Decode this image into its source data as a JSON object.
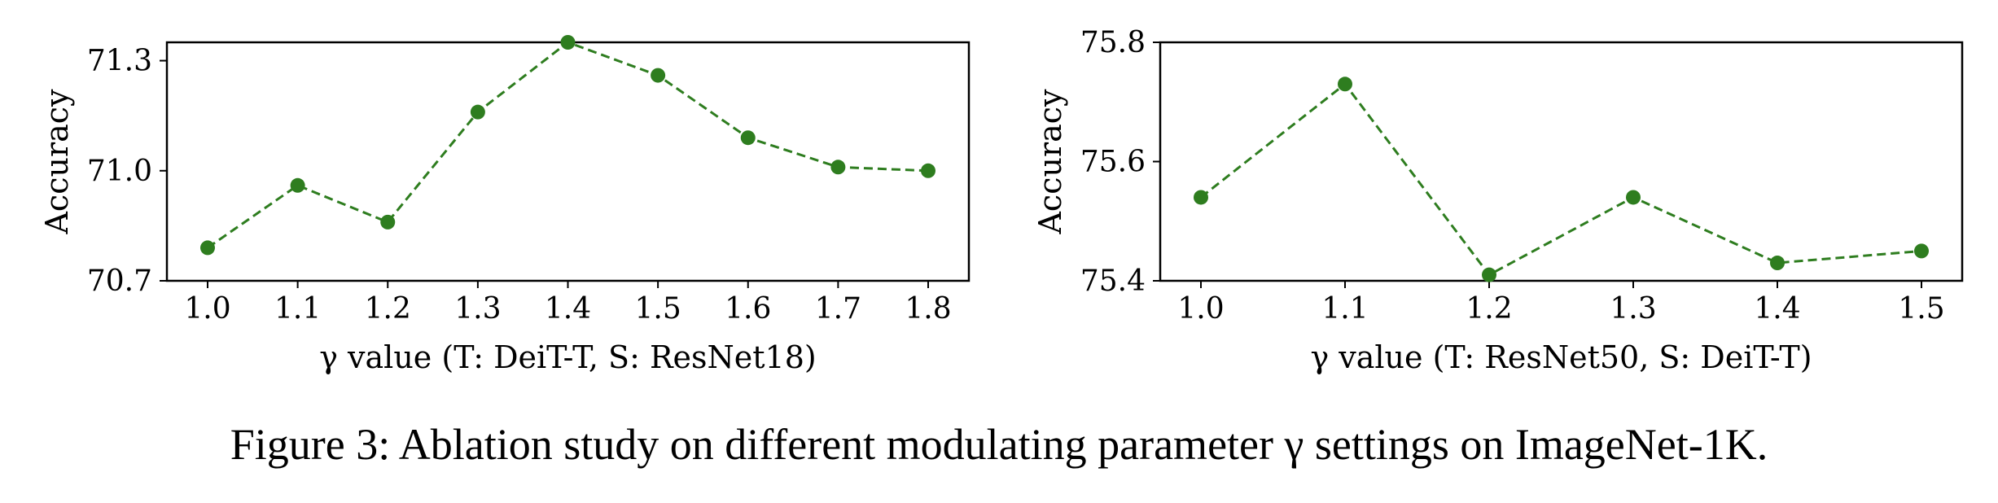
{
  "caption": "Figure 3: Ablation study on different modulating parameter γ settings on ImageNet-1K.",
  "chart_data": [
    {
      "type": "line",
      "xlabel": "γ value (T: DeiT-T, S: ResNet18)",
      "ylabel": "Accuracy",
      "x": [
        1.0,
        1.1,
        1.2,
        1.3,
        1.4,
        1.5,
        1.6,
        1.7,
        1.8
      ],
      "xtick_labels": [
        "1.0",
        "1.1",
        "1.2",
        "1.3",
        "1.4",
        "1.5",
        "1.6",
        "1.7",
        "1.8"
      ],
      "ytick_values": [
        70.7,
        71.0,
        71.3
      ],
      "ytick_labels": [
        "70.7",
        "71.0",
        "71.3"
      ],
      "ylim": [
        70.7,
        71.35
      ],
      "series": [
        {
          "values": [
            70.79,
            70.96,
            70.86,
            71.16,
            71.35,
            71.26,
            71.09,
            71.01,
            71.0
          ],
          "color": "#2e7d1f",
          "line_style": "dashed",
          "marker": "circle"
        }
      ],
      "grid": false
    },
    {
      "type": "line",
      "xlabel": "γ value (T: ResNet50, S: DeiT-T)",
      "ylabel": "Accuracy",
      "x": [
        1.0,
        1.1,
        1.2,
        1.3,
        1.4,
        1.5
      ],
      "xtick_labels": [
        "1.0",
        "1.1",
        "1.2",
        "1.3",
        "1.4",
        "1.5"
      ],
      "ytick_values": [
        75.4,
        75.6,
        75.8
      ],
      "ytick_labels": [
        "75.4",
        "75.6",
        "75.8"
      ],
      "ylim": [
        75.4,
        75.8
      ],
      "series": [
        {
          "values": [
            75.54,
            75.73,
            75.41,
            75.54,
            75.43,
            75.45
          ],
          "color": "#2e7d1f",
          "line_style": "dashed",
          "marker": "circle"
        }
      ],
      "grid": false
    }
  ]
}
